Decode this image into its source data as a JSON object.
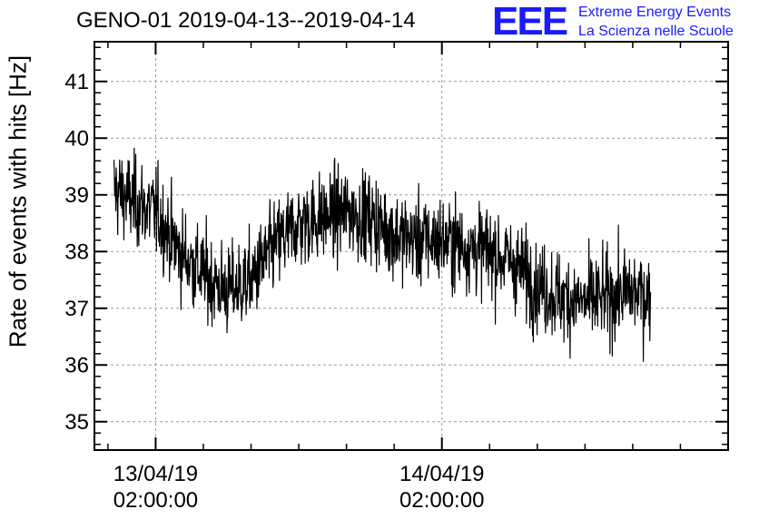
{
  "header": {
    "title": "GENO-01 2019-04-13--2019-04-14",
    "logo_text": "EEE",
    "org_line1": "Extreme Energy Events",
    "org_line2": "La Scienza nelle Scuole"
  },
  "colors": {
    "logo": "#1a1aff",
    "series": "#000000",
    "grid": "#9a9a9a"
  },
  "chart_data": {
    "type": "line",
    "title": "GENO-01 2019-04-13--2019-04-14",
    "xlabel": "",
    "ylabel": "Rate of events with hits [Hz]",
    "ylim": [
      34.5,
      41.7
    ],
    "yticks": [
      35,
      36,
      37,
      38,
      39,
      40,
      41
    ],
    "xlim": [
      "2019-04-12T20:52:00",
      "2019-04-15T02:00:00"
    ],
    "xticks": [
      {
        "value": "2019-04-13T02:00:00",
        "date": "13/04/19",
        "time": "02:00:00"
      },
      {
        "value": "2019-04-14T02:00:00",
        "date": "14/04/19",
        "time": "02:00:00"
      }
    ],
    "grid": true,
    "series": [
      {
        "x_start": "2019-04-12T22:30:00",
        "x_end": "2019-04-14T19:30:00",
        "trend": [
          {
            "x": "2019-04-12T22:30:00",
            "y": 39.1
          },
          {
            "x": "2019-04-13T00:00:00",
            "y": 38.9
          },
          {
            "x": "2019-04-13T02:00:00",
            "y": 38.7
          },
          {
            "x": "2019-04-13T04:00:00",
            "y": 38.0
          },
          {
            "x": "2019-04-13T06:00:00",
            "y": 37.6
          },
          {
            "x": "2019-04-13T08:00:00",
            "y": 37.3
          },
          {
            "x": "2019-04-13T10:00:00",
            "y": 37.5
          },
          {
            "x": "2019-04-13T12:00:00",
            "y": 38.1
          },
          {
            "x": "2019-04-13T14:00:00",
            "y": 38.5
          },
          {
            "x": "2019-04-13T16:00:00",
            "y": 38.6
          },
          {
            "x": "2019-04-13T18:00:00",
            "y": 38.7
          },
          {
            "x": "2019-04-13T20:00:00",
            "y": 38.6
          },
          {
            "x": "2019-04-13T22:00:00",
            "y": 38.3
          },
          {
            "x": "2019-04-14T00:00:00",
            "y": 38.2
          },
          {
            "x": "2019-04-14T02:00:00",
            "y": 38.2
          },
          {
            "x": "2019-04-14T04:00:00",
            "y": 38.1
          },
          {
            "x": "2019-04-14T06:00:00",
            "y": 38.0
          },
          {
            "x": "2019-04-14T08:00:00",
            "y": 37.8
          },
          {
            "x": "2019-04-14T10:00:00",
            "y": 37.4
          },
          {
            "x": "2019-04-14T12:00:00",
            "y": 37.2
          },
          {
            "x": "2019-04-14T14:00:00",
            "y": 37.1
          },
          {
            "x": "2019-04-14T16:00:00",
            "y": 37.2
          },
          {
            "x": "2019-04-14T18:00:00",
            "y": 37.3
          },
          {
            "x": "2019-04-14T19:30:00",
            "y": 37.2
          }
        ],
        "spread": 0.55
      }
    ]
  }
}
